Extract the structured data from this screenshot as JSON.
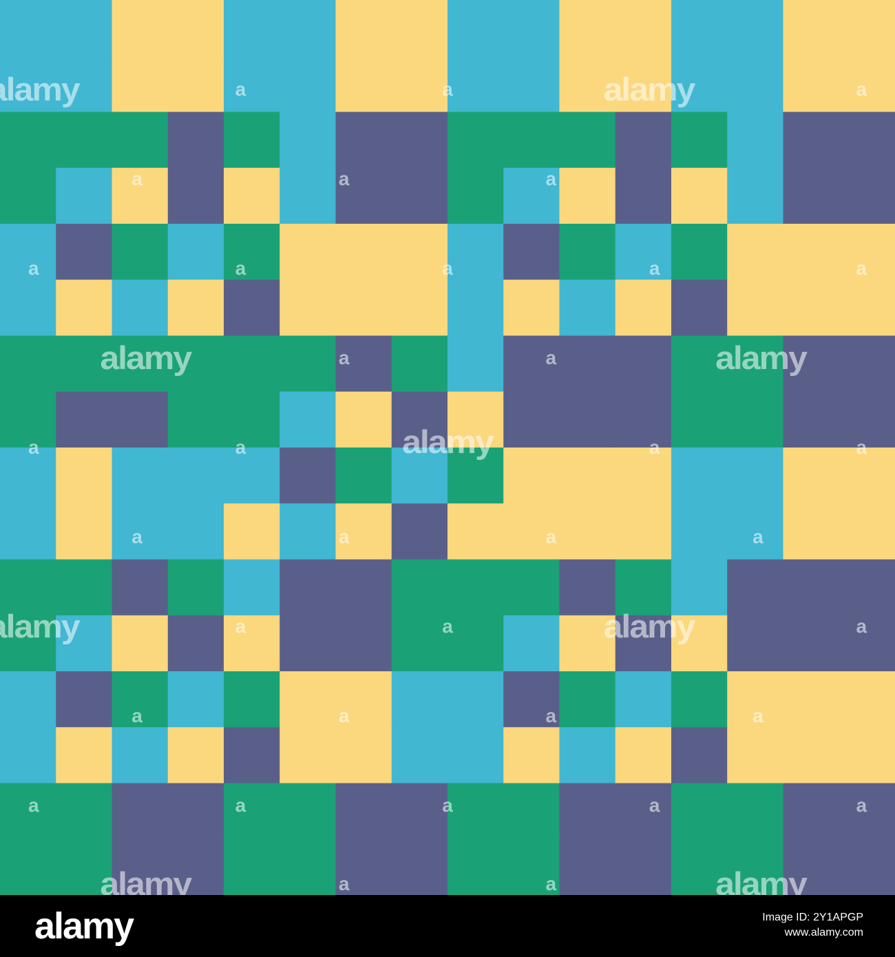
{
  "colors": {
    "cyan": "#41b7d2",
    "yellow": "#fbd87e",
    "green": "#1aa276",
    "purple": "#5a5f8a",
    "footer_bg": "#000000"
  },
  "grid": {
    "rows": 16,
    "cols": 16,
    "legend": {
      "C": "cyan",
      "Y": "yellow",
      "G": "green",
      "P": "purple"
    },
    "cells": [
      "CCYYCCYYCCYYCCYY",
      "CCYYCCYYCCYYCCYY",
      "GGGPGCPPGGGPGCPP",
      "GCYPYCPPGCYPYCPP",
      "CPGCGYYYCPGCGYYY",
      "CYCYPYYYCYCYPYYY",
      "GGGGGGPGCPPPGGPP",
      "GPPGGCYPYPPPGGPP",
      "CYCCCPGCGYYYCCYY",
      "CYCCYCYPYYYYCCYY",
      "GGPGCPPGGGPGCPPP",
      "GCYPYPPGGCYPYPPP",
      "CPGCGYYCCPGCGYYY",
      "CYCYPYYCCYCYPYYY",
      "GGPPGGPPGGPPGGPP",
      "GGPPGGPPGGPPGGPP"
    ]
  },
  "watermark": {
    "word": "alamy",
    "mark": "a",
    "words": [
      {
        "col": 0.6,
        "row": 1.6
      },
      {
        "col": 11.6,
        "row": 1.6
      },
      {
        "col": 2.6,
        "row": 6.4
      },
      {
        "col": 13.6,
        "row": 6.4
      },
      {
        "col": 8.0,
        "row": 7.9
      },
      {
        "col": 0.6,
        "row": 11.2
      },
      {
        "col": 11.6,
        "row": 11.2
      },
      {
        "col": 2.6,
        "row": 15.8
      },
      {
        "col": 13.6,
        "row": 15.8
      }
    ],
    "marks": [
      {
        "col": 4.3,
        "row": 1.6
      },
      {
        "col": 8.0,
        "row": 1.6
      },
      {
        "col": 15.4,
        "row": 1.6
      },
      {
        "col": 2.45,
        "row": 3.2
      },
      {
        "col": 6.15,
        "row": 3.2
      },
      {
        "col": 9.85,
        "row": 3.2
      },
      {
        "col": 0.6,
        "row": 4.8
      },
      {
        "col": 4.3,
        "row": 4.8
      },
      {
        "col": 8.0,
        "row": 4.8
      },
      {
        "col": 11.7,
        "row": 4.8
      },
      {
        "col": 15.4,
        "row": 4.8
      },
      {
        "col": 6.15,
        "row": 6.4
      },
      {
        "col": 9.85,
        "row": 6.4
      },
      {
        "col": 0.6,
        "row": 8.0
      },
      {
        "col": 4.3,
        "row": 8.0
      },
      {
        "col": 11.7,
        "row": 8.0
      },
      {
        "col": 15.4,
        "row": 8.0
      },
      {
        "col": 2.45,
        "row": 9.6
      },
      {
        "col": 6.15,
        "row": 9.6
      },
      {
        "col": 9.85,
        "row": 9.6
      },
      {
        "col": 13.55,
        "row": 9.6
      },
      {
        "col": 4.3,
        "row": 11.2
      },
      {
        "col": 8.0,
        "row": 11.2
      },
      {
        "col": 15.4,
        "row": 11.2
      },
      {
        "col": 2.45,
        "row": 12.8
      },
      {
        "col": 6.15,
        "row": 12.8
      },
      {
        "col": 9.85,
        "row": 12.8
      },
      {
        "col": 13.55,
        "row": 12.8
      },
      {
        "col": 0.6,
        "row": 14.4
      },
      {
        "col": 4.3,
        "row": 14.4
      },
      {
        "col": 8.0,
        "row": 14.4
      },
      {
        "col": 11.7,
        "row": 14.4
      },
      {
        "col": 15.4,
        "row": 14.4
      },
      {
        "col": 6.15,
        "row": 15.8
      },
      {
        "col": 9.85,
        "row": 15.8
      }
    ]
  },
  "footer": {
    "brand": "alamy",
    "image_id": "Image ID: 2Y1APGP",
    "site": "www.alamy.com"
  }
}
